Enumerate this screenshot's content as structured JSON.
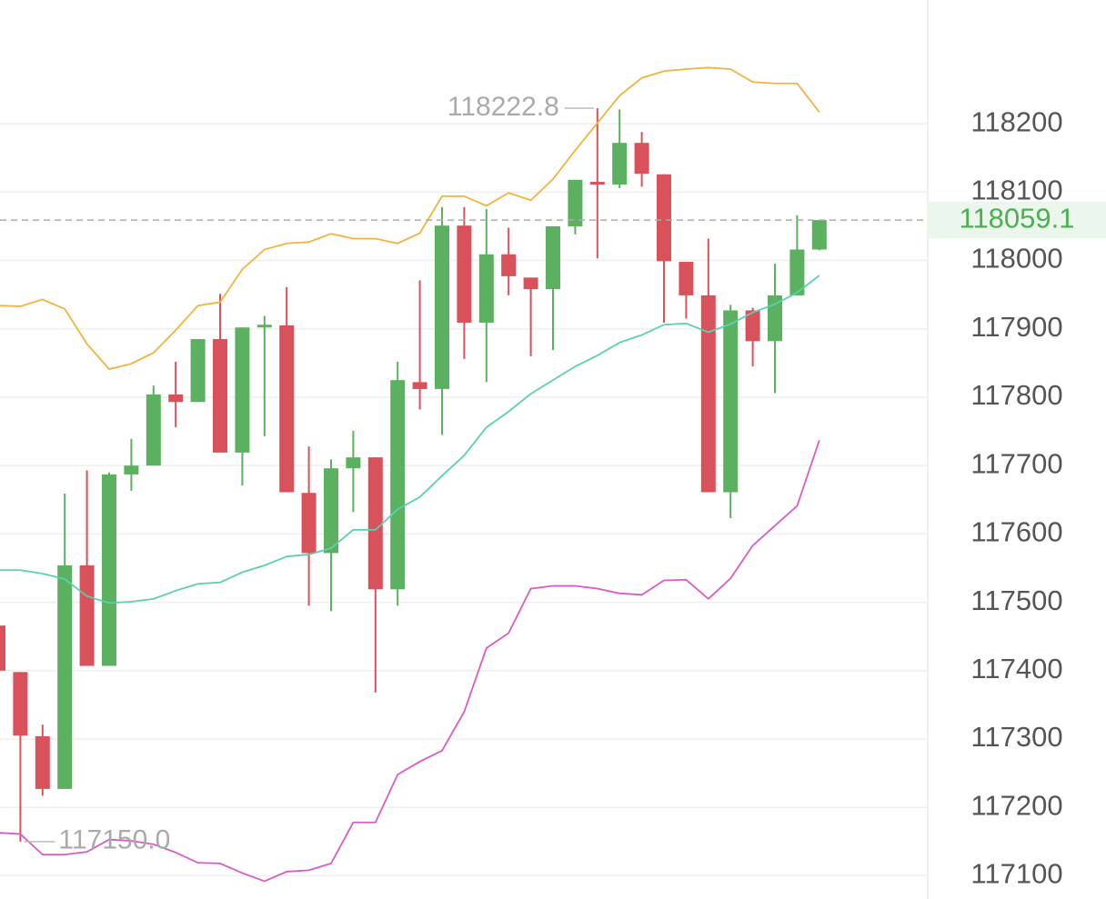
{
  "chart_data": {
    "type": "candlestick",
    "up_color": "#5bb15f",
    "down_color": "#d9525b",
    "series": {
      "open": [
        117466,
        117398,
        117304,
        117227,
        117554,
        117407,
        117687,
        117700,
        117804,
        117793,
        117885,
        117719,
        117902,
        117905,
        117660,
        117572,
        117696,
        117712,
        117519,
        117822,
        117812,
        118051,
        117909,
        118009,
        117975,
        117958,
        118050,
        118115,
        118111,
        118172,
        118126,
        117998,
        117949,
        117661,
        117927,
        117882,
        117949,
        118016
      ],
      "high": [
        117470,
        117398,
        117321,
        117659,
        117693,
        117690,
        117739,
        117817,
        117852,
        117885,
        117951,
        117902,
        117919,
        117961,
        117728,
        117709,
        117751,
        117712,
        117852,
        117971,
        118078,
        118078,
        118075,
        118048,
        117975,
        118050,
        118118,
        118222.8,
        118221,
        118188,
        118126,
        117998,
        118032,
        117935,
        117931,
        117995,
        118066,
        118059.1
      ],
      "low": [
        117390,
        117150,
        117217,
        117227,
        117407,
        117407,
        117663,
        117700,
        117756,
        117793,
        117719,
        117671,
        117743,
        117661,
        117495,
        117487,
        117632,
        117368,
        117495,
        117782,
        117745,
        117856,
        117822,
        117949,
        117860,
        117869,
        118038,
        118003,
        118106,
        118108,
        117909,
        117915,
        117661,
        117623,
        117845,
        117806,
        117949,
        118015
      ],
      "close": [
        117400,
        117305,
        117227,
        117554,
        117407,
        117687,
        117700,
        117804,
        117793,
        117885,
        117719,
        117902,
        117906,
        117661,
        117572,
        117696,
        117712,
        117519,
        117825,
        117812,
        118051,
        117909,
        118009,
        117977,
        117958,
        118050,
        118118,
        118111,
        118172,
        118127,
        117999,
        117949,
        117661,
        117927,
        117882,
        117949,
        118016,
        118059.1
      ]
    },
    "lines": [
      {
        "color": "#f0b43c",
        "values": [
          117934,
          117933,
          117943,
          117929,
          117878,
          117841,
          117849,
          117865,
          117898,
          117934,
          117939,
          117987,
          118016,
          118025,
          118027,
          118039,
          118032,
          118032,
          118025,
          118040,
          118094,
          118094,
          118080,
          118099,
          118088,
          118119,
          118161,
          118201,
          118241,
          118267,
          118277,
          118280,
          118282,
          118280,
          118261,
          118259,
          118259,
          118217
        ]
      },
      {
        "color": "#5ccfb0",
        "values": [
          117547,
          117547,
          117542,
          117534,
          117509,
          117499,
          117501,
          117505,
          117517,
          117527,
          117529,
          117544,
          117554,
          117567,
          117570,
          117579,
          117606,
          117606,
          117636,
          117654,
          117685,
          117715,
          117756,
          117779,
          117805,
          117825,
          117845,
          117861,
          117880,
          117891,
          117906,
          117908,
          117895,
          117907,
          117924,
          117936,
          117953,
          117978
        ]
      },
      {
        "color": "#d95bc6",
        "values": [
          117163,
          117161,
          117131,
          117131,
          117135,
          117153,
          117151,
          117146,
          117134,
          117119,
          117118,
          117104,
          117092,
          117106,
          117108,
          117118,
          117178,
          117178,
          117248,
          117267,
          117283,
          117340,
          117433,
          117455,
          117520,
          117524,
          117524,
          117520,
          117513,
          117511,
          117532,
          117533,
          117505,
          117535,
          117583,
          117612,
          117641,
          117737
        ]
      }
    ],
    "annotations": {
      "high": 118222.8,
      "low": {
        "value": 117150,
        "label": "117150.0"
      },
      "last": 118059.1
    },
    "ylim": [
      117066,
      118381
    ],
    "yticks": [
      117100,
      117200,
      117300,
      117400,
      117500,
      117600,
      117700,
      117800,
      117900,
      118000,
      118100,
      118200
    ],
    "grid": true
  }
}
